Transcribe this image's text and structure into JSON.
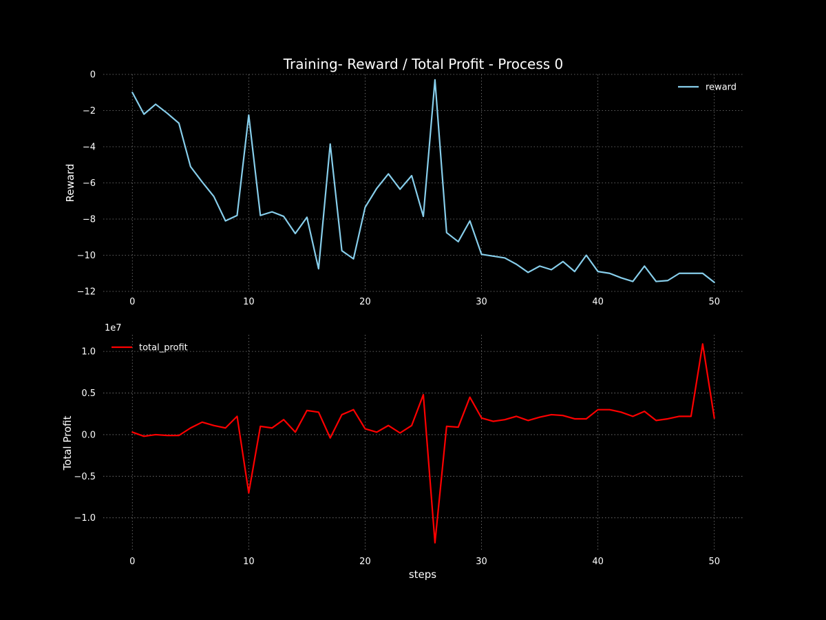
{
  "figure": {
    "title": "Training- Reward / Total Profit - Process 0",
    "background": "#000000",
    "grid": true
  },
  "chart_data": [
    {
      "type": "line",
      "title": "Training- Reward / Total Profit - Process 0",
      "xlabel": "",
      "ylabel": "Reward",
      "xlim": [
        -2.5,
        52.5
      ],
      "ylim": [
        -12,
        0
      ],
      "xticks": [
        0,
        10,
        20,
        30,
        40,
        50
      ],
      "yticks": [
        0,
        -2,
        -4,
        -6,
        -8,
        -10,
        -12
      ],
      "ytick_labels": [
        "0",
        "−2",
        "−4",
        "−6",
        "−8",
        "−10",
        "−12"
      ],
      "xtick_labels": [
        "0",
        "10",
        "20",
        "30",
        "40",
        "50"
      ],
      "grid": true,
      "legend": "top-right",
      "series": [
        {
          "name": "reward",
          "color": "#87CEEB",
          "x": [
            0,
            1,
            2,
            3,
            4,
            5,
            6,
            7,
            8,
            9,
            10,
            11,
            12,
            13,
            14,
            15,
            16,
            17,
            18,
            19,
            20,
            21,
            22,
            23,
            24,
            25,
            26,
            27,
            28,
            29,
            30,
            31,
            32,
            33,
            34,
            35,
            36,
            37,
            38,
            39,
            40,
            41,
            42,
            43,
            44,
            45,
            46,
            47,
            48,
            49,
            50
          ],
          "values": [
            -1.0,
            -2.2,
            -1.65,
            -2.15,
            -2.7,
            -5.1,
            -5.95,
            -6.75,
            -8.1,
            -7.8,
            -2.25,
            -7.8,
            -7.6,
            -7.85,
            -8.8,
            -7.9,
            -10.75,
            -3.85,
            -9.75,
            -10.2,
            -7.35,
            -6.3,
            -5.5,
            -6.35,
            -5.6,
            -7.85,
            -0.3,
            -8.75,
            -9.25,
            -8.1,
            -9.95,
            -10.05,
            -10.15,
            -10.5,
            -10.95,
            -10.6,
            -10.8,
            -10.35,
            -10.9,
            -10.0,
            -10.9,
            -11.0,
            -11.25,
            -11.45,
            -10.6,
            -11.45,
            -11.4,
            -11.0,
            -11.0,
            -11.0,
            -11.5
          ]
        }
      ]
    },
    {
      "type": "line",
      "title": "",
      "xlabel": "steps",
      "ylabel": "Total Profit",
      "y_offset_label": "1e7",
      "xlim": [
        -2.5,
        52.5
      ],
      "ylim": [
        -1.4,
        1.2
      ],
      "xticks": [
        0,
        10,
        20,
        30,
        40,
        50
      ],
      "yticks": [
        1.0,
        0.5,
        0.0,
        -0.5,
        -1.0
      ],
      "ytick_labels": [
        "1.0",
        "0.5",
        "0.0",
        "−0.5",
        "−1.0"
      ],
      "xtick_labels": [
        "0",
        "10",
        "20",
        "30",
        "40",
        "50"
      ],
      "grid": true,
      "legend": "top-left",
      "series": [
        {
          "name": "total_profit",
          "color": "#ff0000",
          "x": [
            0,
            1,
            2,
            3,
            4,
            5,
            6,
            7,
            8,
            9,
            10,
            11,
            12,
            13,
            14,
            15,
            16,
            17,
            18,
            19,
            20,
            21,
            22,
            23,
            24,
            25,
            26,
            27,
            28,
            29,
            30,
            31,
            32,
            33,
            34,
            35,
            36,
            37,
            38,
            39,
            40,
            41,
            42,
            43,
            44,
            45,
            46,
            47,
            48,
            49,
            50
          ],
          "values": [
            0.03,
            -0.02,
            0.0,
            -0.01,
            -0.01,
            0.08,
            0.15,
            0.11,
            0.08,
            0.22,
            -0.7,
            0.1,
            0.08,
            0.18,
            0.03,
            0.29,
            0.27,
            -0.04,
            0.24,
            0.3,
            0.07,
            0.03,
            0.11,
            0.02,
            0.11,
            0.48,
            -1.3,
            0.1,
            0.09,
            0.45,
            0.2,
            0.16,
            0.18,
            0.22,
            0.17,
            0.21,
            0.24,
            0.23,
            0.19,
            0.19,
            0.3,
            0.3,
            0.27,
            0.22,
            0.28,
            0.17,
            0.19,
            0.22,
            0.22,
            1.09,
            0.2
          ]
        }
      ]
    }
  ]
}
